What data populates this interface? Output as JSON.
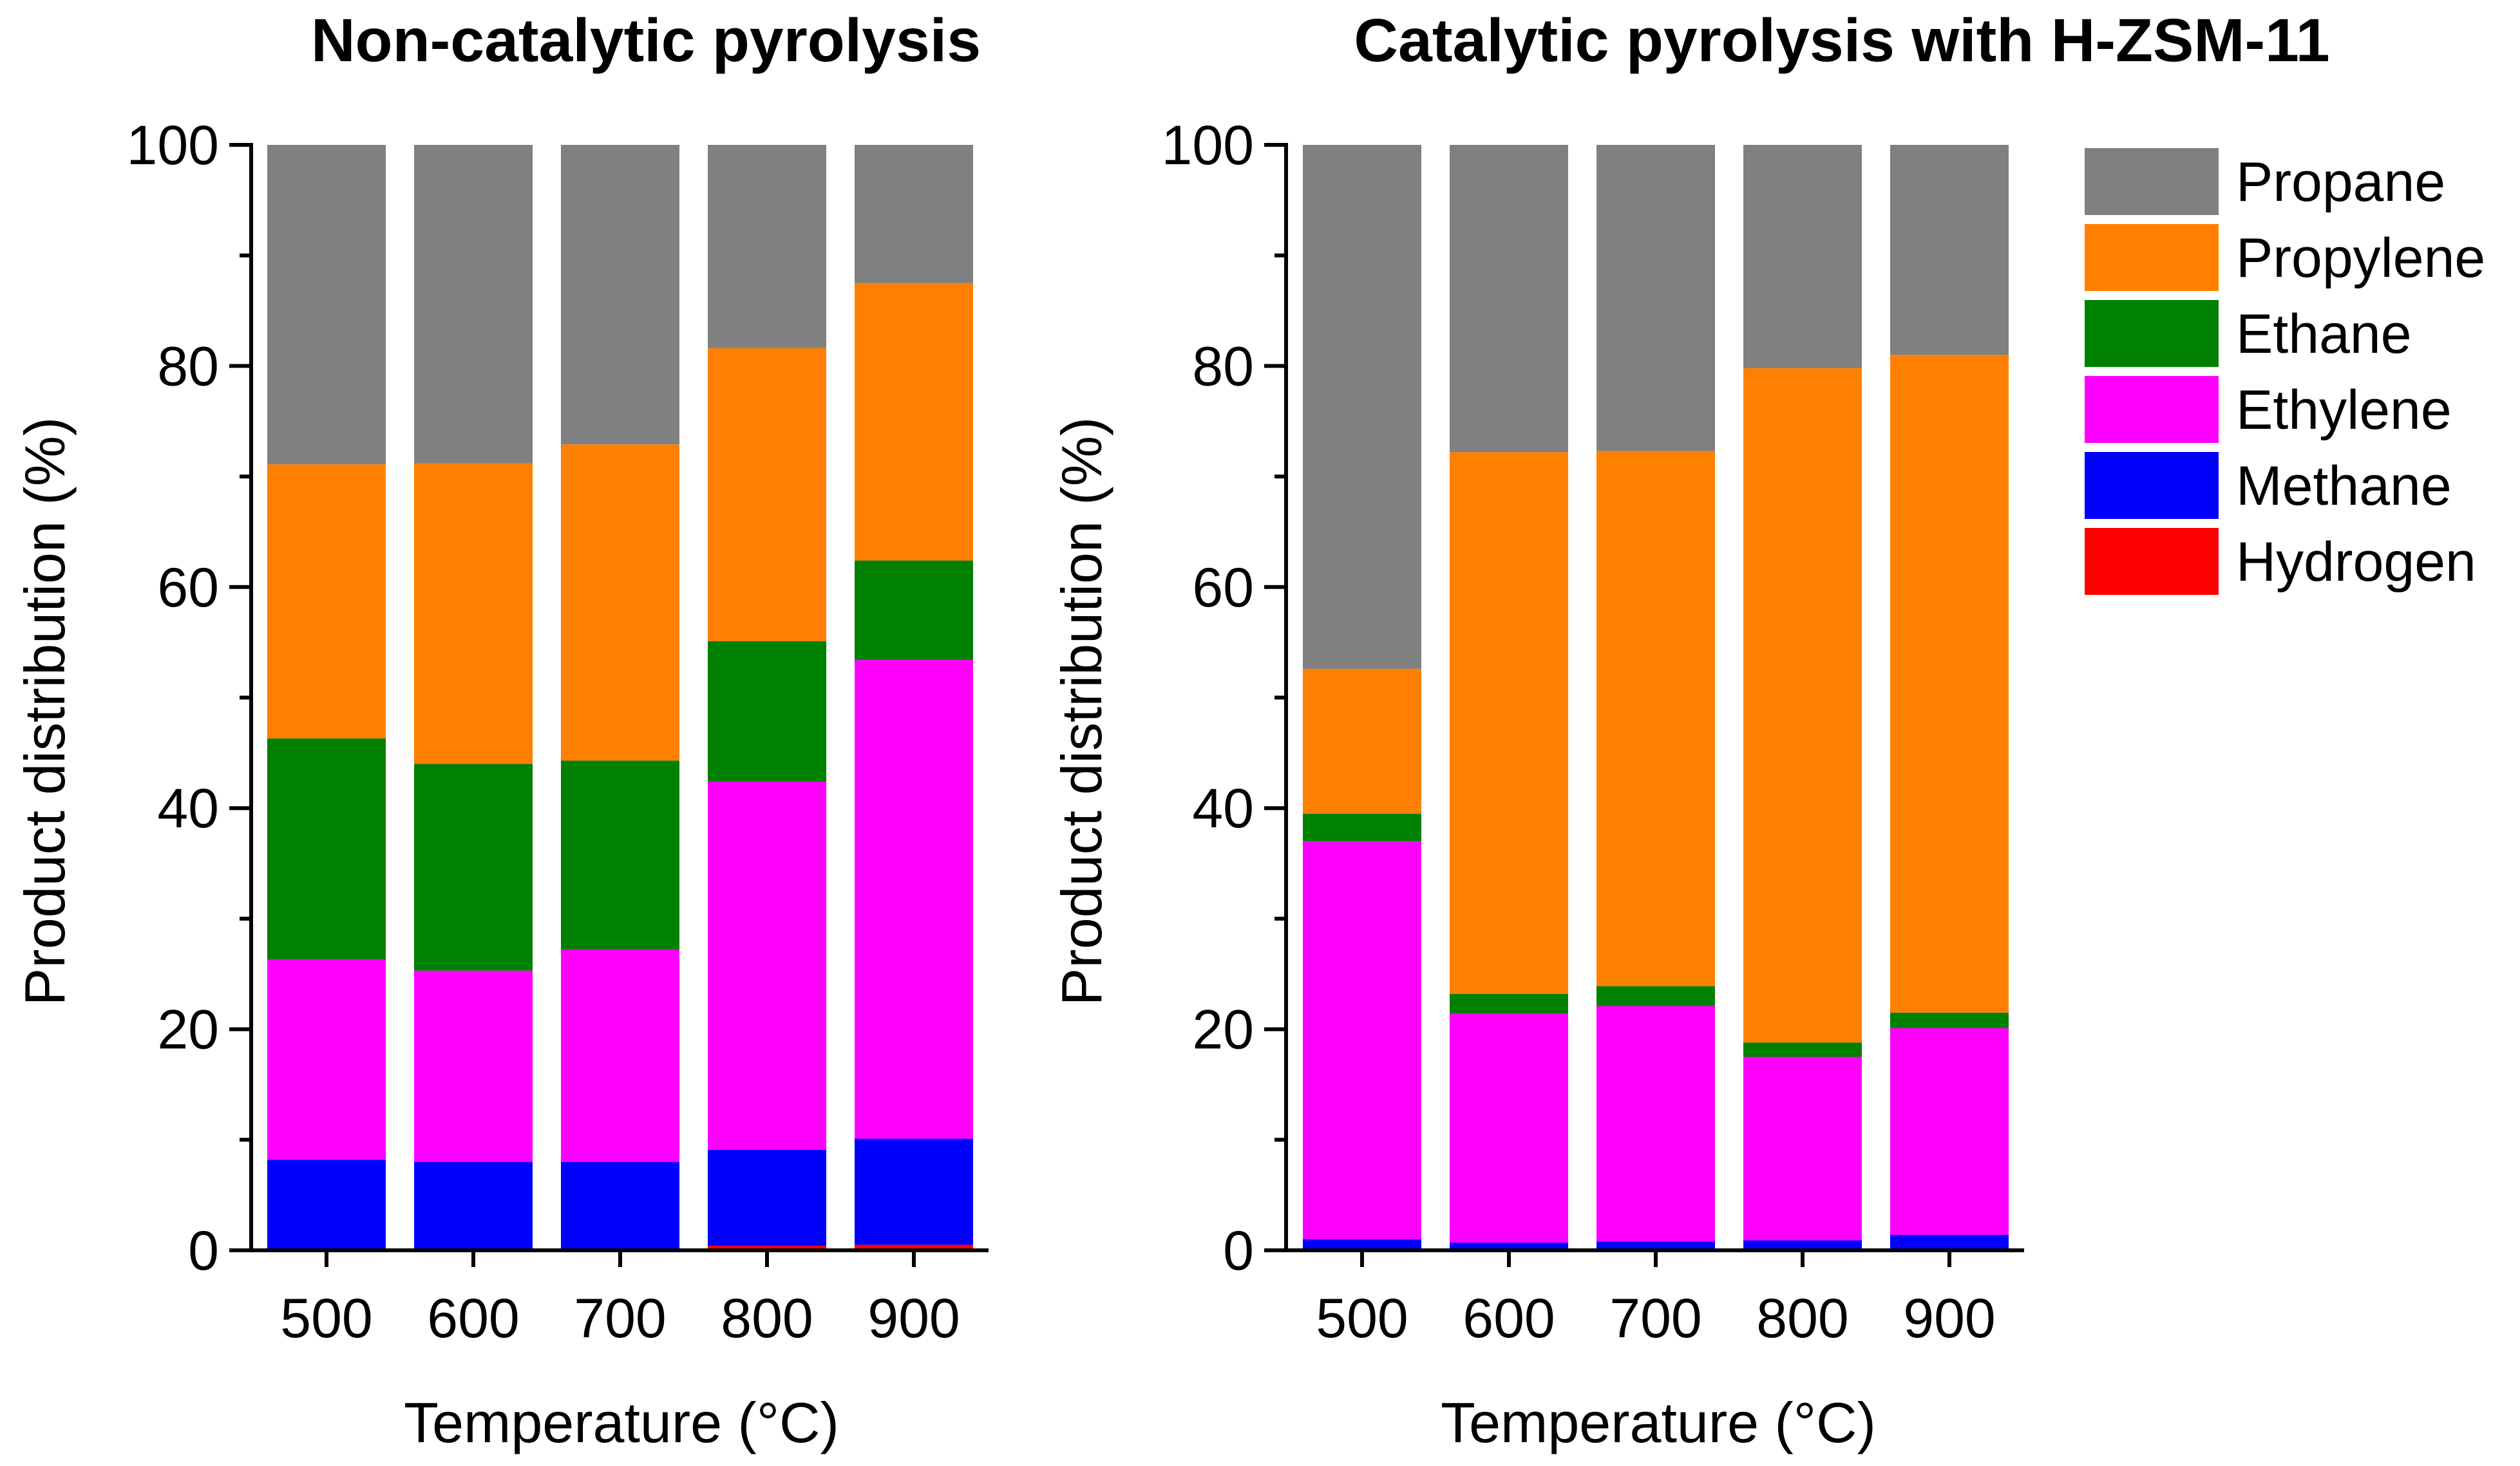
{
  "chart_data": [
    {
      "type": "bar",
      "stacked": true,
      "title": "Non-catalytic pyrolysis",
      "xlabel": "Temperature (°C)",
      "ylabel": "Product distribution (%)",
      "ylim": [
        0,
        100
      ],
      "yticks": [
        "0",
        "20",
        "40",
        "60",
        "80",
        "100"
      ],
      "categories": [
        "500",
        "600",
        "700",
        "800",
        "900"
      ],
      "series": [
        {
          "name": "Hydrogen",
          "color": "#ff0000",
          "values": [
            0.0,
            0.0,
            0.0,
            0.4,
            0.5
          ]
        },
        {
          "name": "Methane",
          "color": "#0000ff",
          "values": [
            8.2,
            8.0,
            8.0,
            8.7,
            9.6
          ]
        },
        {
          "name": "Ethylene",
          "color": "#ff00ff",
          "values": [
            18.1,
            17.3,
            19.2,
            33.3,
            43.3
          ]
        },
        {
          "name": "Ethane",
          "color": "#008000",
          "values": [
            20.0,
            18.7,
            17.1,
            12.7,
            9.0
          ]
        },
        {
          "name": "Propylene",
          "color": "#ff8000",
          "values": [
            24.8,
            27.2,
            28.6,
            26.5,
            25.1
          ]
        },
        {
          "name": "Propane",
          "color": "#808080",
          "values": [
            28.9,
            28.8,
            27.1,
            18.4,
            12.5
          ]
        }
      ]
    },
    {
      "type": "bar",
      "stacked": true,
      "title": "Catalytic pyrolysis with H-ZSM-11",
      "xlabel": "Temperature (°C)",
      "ylabel": "Product distribution (%)",
      "ylim": [
        0,
        100
      ],
      "yticks": [
        "0",
        "20",
        "40",
        "60",
        "80",
        "100"
      ],
      "categories": [
        "500",
        "600",
        "700",
        "800",
        "900"
      ],
      "series": [
        {
          "name": "Hydrogen",
          "color": "#ff0000",
          "values": [
            0.0,
            0.0,
            0.0,
            0.0,
            0.0
          ]
        },
        {
          "name": "Methane",
          "color": "#0000ff",
          "values": [
            1.0,
            0.7,
            0.8,
            0.9,
            1.4
          ]
        },
        {
          "name": "Ethylene",
          "color": "#ff00ff",
          "values": [
            36.0,
            20.7,
            21.3,
            16.6,
            18.7
          ]
        },
        {
          "name": "Ethane",
          "color": "#008000",
          "values": [
            2.5,
            1.8,
            1.8,
            1.3,
            1.4
          ]
        },
        {
          "name": "Propylene",
          "color": "#ff8000",
          "values": [
            13.1,
            49.0,
            48.4,
            61.0,
            59.5
          ]
        },
        {
          "name": "Propane",
          "color": "#808080",
          "values": [
            47.4,
            27.8,
            27.7,
            20.2,
            19.0
          ]
        }
      ]
    }
  ],
  "legend": {
    "placement": "right",
    "items": [
      {
        "label": "Propane",
        "color": "#808080"
      },
      {
        "label": "Propylene",
        "color": "#ff8000"
      },
      {
        "label": "Ethane",
        "color": "#008000"
      },
      {
        "label": "Ethylene",
        "color": "#ff00ff"
      },
      {
        "label": "Methane",
        "color": "#0000ff"
      },
      {
        "label": "Hydrogen",
        "color": "#ff0000"
      }
    ]
  }
}
